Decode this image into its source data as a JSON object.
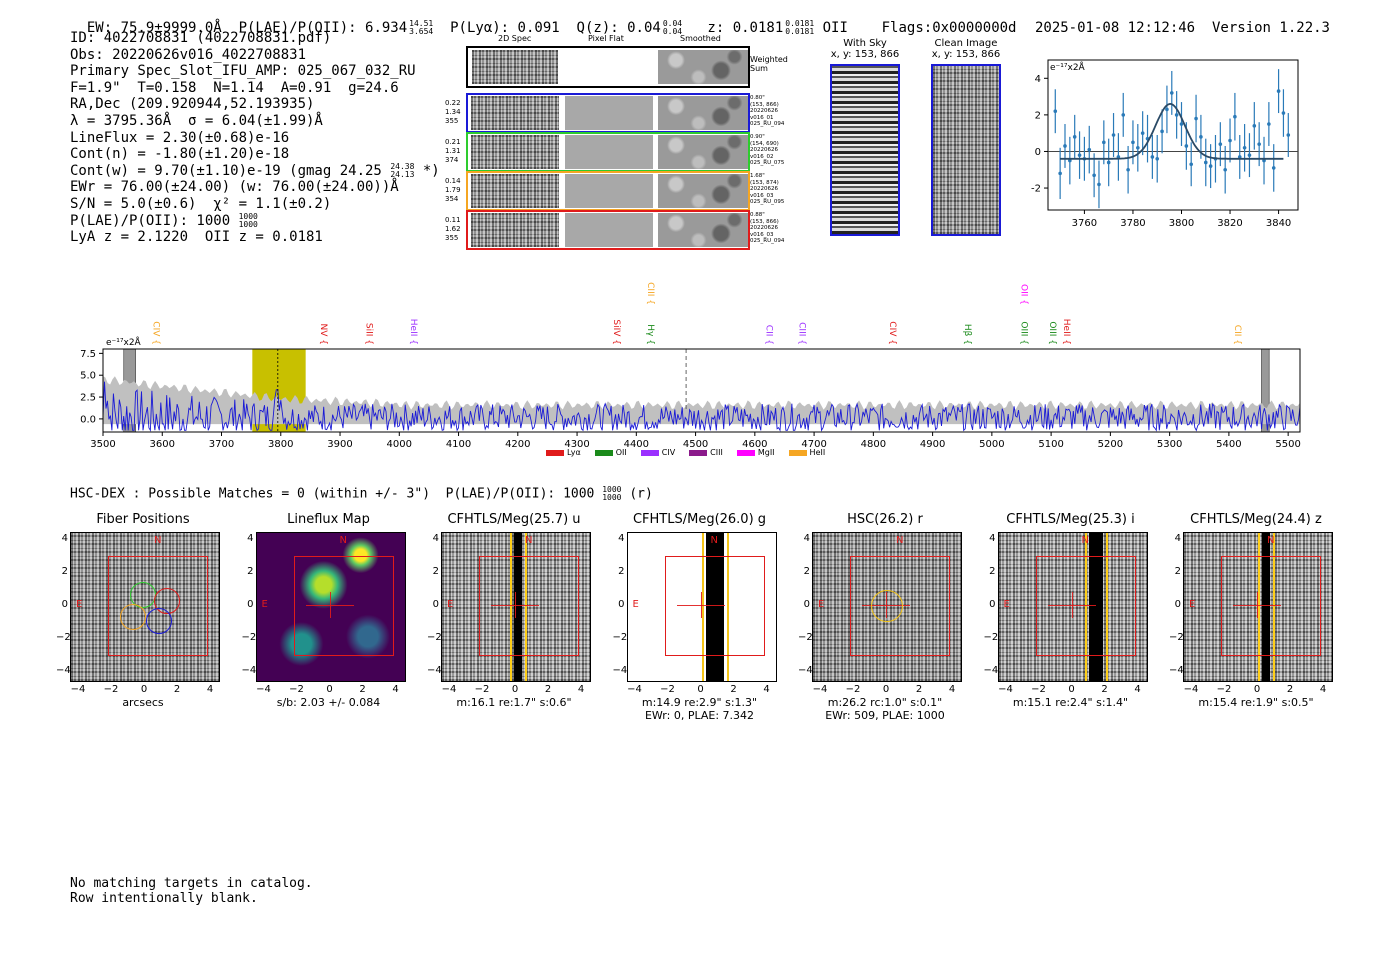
{
  "header": {
    "ew_text": "EW: 75.9±9999.0Å",
    "plae_text": "P(LAE)/P(OII): 6.934",
    "plae_sup": "14.51",
    "plae_sub": "3.654",
    "plya_text": "P(Lyα): 0.091",
    "qz_text": "Q(z): 0.04",
    "qz_sup": "0.04",
    "qz_sub": "0.04",
    "z_text": "z: 0.0181",
    "z_sup": "0.0181",
    "z_sub": "0.0181",
    "z_line": "OII",
    "flags": "Flags:0x0000000d",
    "datetime": "2025-01-08 12:12:46",
    "version": "Version 1.22.3"
  },
  "info": {
    "id": "ID: 4022708831 (4022708831.pdf)",
    "obs": "Obs: 20220626v016_4022708831",
    "primary": "Primary Spec_Slot_IFU_AMP: 025_067_032_RU",
    "params": "F=1.9\"  T=0.158  N=1.14  A=0.91  g=24.6",
    "radec": "RA,Dec (209.920944,52.193935)",
    "lambda": "λ = 3795.36Å  σ = 6.04(±1.99)Å",
    "lineflux": "LineFlux = 2.30(±0.68)e-16",
    "cont_n": "Cont(n) = -1.80(±1.20)e-18",
    "cont_w": "Cont(w) = 9.70(±1.10)e-19 (gmag 24.25",
    "cont_w_sup": "24.38",
    "cont_w_sub": "24.13",
    "cont_w_end": "*)",
    "ewr": "EWr = 76.00(±24.00) (w: 76.00(±24.00))Å",
    "sn": "S/N = 5.0(±0.6)  χ² = 1.1(±0.2)",
    "plae": "P(LAE)/P(OII): 1000",
    "plae_sup": "1000",
    "plae_sub": "1000",
    "lya": "LyA z = 2.1220  OII z = 0.0181"
  },
  "cutouts": {
    "col_headers": [
      "2D Spec",
      "Pixel Flat",
      "Smoothed"
    ],
    "weighted_label": [
      "Weighted",
      "Sum"
    ],
    "rows": [
      {
        "left": [
          "0.22",
          "1.34",
          "355"
        ],
        "right": [
          "0.80\"",
          "(153, 866)",
          "20220626",
          "v016_01",
          "025_RU_094"
        ],
        "color": "#1a1ad6"
      },
      {
        "left": [
          "0.21",
          "1.31",
          "374"
        ],
        "right": [
          "0.90\"",
          "(154, 690)",
          "20220626",
          "v016_02",
          "025_RU_075"
        ],
        "color": "#2ecc2e"
      },
      {
        "left": [
          "0.14",
          "1.79",
          "354"
        ],
        "right": [
          "1.68\"",
          "(153, 874)",
          "20220626",
          "v016_03",
          "025_RU_095"
        ],
        "color": "#f5a623"
      },
      {
        "left": [
          "0.11",
          "1.62",
          "355"
        ],
        "right": [
          "0.88\"",
          "(153, 866)",
          "20220626",
          "v016_03",
          "025_RU_094"
        ],
        "color": "#e01b1b"
      }
    ],
    "with_sky_title": "With Sky",
    "with_sky_xy": "x, y: 153, 866",
    "clean_title": "Clean Image",
    "clean_xy": "x, y: 153, 866"
  },
  "zoom_chart": {
    "unit_label": "e⁻¹⁷x2Å",
    "xlim": [
      3745,
      3848
    ],
    "ylim": [
      -3.2,
      5.0
    ],
    "xticks": [
      "3760",
      "3780",
      "3800",
      "3820",
      "3840"
    ],
    "yticks": [
      "4",
      "2",
      "0",
      "-2"
    ]
  },
  "spectrum_chart": {
    "unit_label": "e⁻¹⁷x2Å",
    "xlim": [
      3500,
      5520
    ],
    "ylim": [
      -1.5,
      8.0
    ],
    "xticks": [
      "3500",
      "3600",
      "3700",
      "3800",
      "3900",
      "4000",
      "4100",
      "4200",
      "4300",
      "4400",
      "4500",
      "4600",
      "4700",
      "4800",
      "4900",
      "5000",
      "5100",
      "5200",
      "5300",
      "5400",
      "5500"
    ],
    "yticks": [
      "7.5",
      "5.0",
      "2.5",
      "0.0"
    ],
    "line_labels": [
      {
        "name": "CIV",
        "x": 3585,
        "color": "#f5a623",
        "row": 1
      },
      {
        "name": "NV",
        "x": 3868,
        "color": "#e01b1b",
        "row": 1
      },
      {
        "name": "SiII",
        "x": 3945,
        "color": "#e01b1b",
        "row": 1
      },
      {
        "name": "HeII",
        "x": 4020,
        "color": "#9b30ff",
        "row": 1
      },
      {
        "name": "SiIV",
        "x": 4362,
        "color": "#e01b1b",
        "row": 1
      },
      {
        "name": "Hγ",
        "x": 4420,
        "color": "#1a8a1a",
        "row": 1
      },
      {
        "name": "CIII",
        "x": 4420,
        "color": "#f5a623",
        "row": 0
      },
      {
        "name": "CII",
        "x": 4620,
        "color": "#9b30ff",
        "row": 1
      },
      {
        "name": "CIII",
        "x": 4675,
        "color": "#9b30ff",
        "row": 1
      },
      {
        "name": "CIV",
        "x": 4828,
        "color": "#e01b1b",
        "row": 1
      },
      {
        "name": "Hβ",
        "x": 4955,
        "color": "#1a8a1a",
        "row": 1
      },
      {
        "name": "OIII",
        "x": 5050,
        "color": "#1a8a1a",
        "row": 1
      },
      {
        "name": "OII",
        "x": 5050,
        "color": "#ff00ff",
        "row": 0
      },
      {
        "name": "OIII",
        "x": 5098,
        "color": "#1a8a1a",
        "row": 1
      },
      {
        "name": "HeII",
        "x": 5122,
        "color": "#e01b1b",
        "row": 1
      },
      {
        "name": "CII",
        "x": 5410,
        "color": "#f5a623",
        "row": 1
      }
    ],
    "legend": [
      {
        "name": "Lyα",
        "color": "#e01b1b"
      },
      {
        "name": "OII",
        "color": "#1a8a1a"
      },
      {
        "name": "CIV",
        "color": "#9b30ff"
      },
      {
        "name": "CIII",
        "color": "#8b1a8b"
      },
      {
        "name": "MgII",
        "color": "#ff00ff"
      },
      {
        "name": "HeII",
        "color": "#f5a623"
      }
    ]
  },
  "chart_data": [
    {
      "type": "scatter",
      "title": "",
      "xlabel": "",
      "ylabel": "e⁻¹⁷x2Å",
      "xlim": [
        3745,
        3848
      ],
      "ylim": [
        -3.2,
        5.0
      ],
      "series": [
        {
          "name": "data",
          "x": [
            3748,
            3750,
            3752,
            3754,
            3756,
            3758,
            3760,
            3762,
            3764,
            3766,
            3768,
            3770,
            3772,
            3774,
            3776,
            3778,
            3780,
            3782,
            3784,
            3786,
            3788,
            3790,
            3792,
            3794,
            3796,
            3798,
            3800,
            3802,
            3804,
            3806,
            3808,
            3810,
            3812,
            3814,
            3816,
            3818,
            3820,
            3822,
            3824,
            3826,
            3828,
            3830,
            3832,
            3834,
            3836,
            3838,
            3840,
            3842,
            3844
          ],
          "y": [
            2.2,
            -1.2,
            0.3,
            -0.5,
            0.8,
            -0.2,
            -0.4,
            0.1,
            -1.3,
            -1.8,
            0.5,
            -0.6,
            0.9,
            -0.3,
            2.0,
            -1.0,
            0.5,
            0.2,
            1.0,
            0.7,
            -0.3,
            -0.4,
            1.1,
            2.3,
            3.2,
            2.0,
            1.5,
            0.3,
            -0.7,
            1.8,
            0.8,
            -0.6,
            -0.8,
            -0.4,
            0.4,
            -1.0,
            0.6,
            1.9,
            -0.3,
            0.2,
            -0.2,
            1.4,
            0.4,
            -0.5,
            1.5,
            -0.9,
            3.3,
            2.1,
            0.9
          ],
          "err": [
            1.2,
            1.4,
            1.2,
            1.3,
            1.2,
            1.3,
            1.2,
            1.3,
            1.2,
            1.3,
            1.2,
            1.3,
            1.2,
            1.3,
            1.2,
            1.3,
            1.2,
            1.3,
            1.2,
            1.3,
            1.2,
            1.3,
            1.2,
            1.3,
            1.2,
            1.3,
            1.2,
            1.3,
            1.2,
            1.3,
            1.2,
            1.3,
            1.2,
            1.3,
            1.2,
            1.3,
            1.2,
            1.3,
            1.2,
            1.3,
            1.2,
            1.3,
            1.2,
            1.3,
            1.2,
            1.3,
            1.2,
            1.3,
            1.2
          ]
        },
        {
          "name": "gaussian fit",
          "center": 3795.36,
          "sigma": 6.04,
          "amplitude": 3.0,
          "baseline": -0.4
        }
      ]
    },
    {
      "type": "line",
      "title": "",
      "xlabel": "",
      "ylabel": "e⁻¹⁷x2Å",
      "xlim": [
        3500,
        5520
      ],
      "ylim": [
        -1.5,
        8.0
      ],
      "highlight_range": [
        3752,
        3842
      ],
      "marker_lines": [
        3795,
        4484
      ],
      "hatched_ranges": [
        [
          3535,
          3555
        ],
        [
          5455,
          5468
        ]
      ],
      "series": [
        {
          "name": "flux",
          "color": "#1a1ad6"
        },
        {
          "name": "noise",
          "color": "#c0c0c0"
        }
      ]
    }
  ],
  "bottom": {
    "hsc_line": "HSC-DEX : Possible Matches = 0 (within +/- 3\")  P(LAE)/P(OII): 1000",
    "hsc_sup": "1000",
    "hsc_sub": "1000",
    "hsc_end": "(r)",
    "panels": [
      {
        "title": "Fiber Positions",
        "caption1": "arcsecs",
        "caption2": "",
        "kind": "fiber"
      },
      {
        "title": "Lineflux Map",
        "caption1": "s/b: 2.03 +/- 0.084",
        "caption2": "",
        "kind": "lineflux"
      },
      {
        "title": "CFHTLS/Meg(25.7) u",
        "caption1": "m:16.1  re:1.7\"  s:0.6\"",
        "caption2": "",
        "kind": "band"
      },
      {
        "title": "CFHTLS/Meg(26.0) g",
        "caption1": "m:14.9  re:2.9\"  s:1.3\"",
        "caption2": "EWr: 0, PLAE: 7.342",
        "kind": "g"
      },
      {
        "title": "HSC(26.2) r",
        "caption1": "m:26.2  rc:1.0\"  s:0.1\"",
        "caption2": "EWr: 509, PLAE: 1000",
        "kind": "r"
      },
      {
        "title": "CFHTLS/Meg(25.3) i",
        "caption1": "m:15.1  re:2.4\"  s:1.4\"",
        "caption2": "",
        "kind": "band"
      },
      {
        "title": "CFHTLS/Meg(24.4) z",
        "caption1": "m:15.4  re:1.9\"  s:0.5\"",
        "caption2": "",
        "kind": "band"
      }
    ],
    "axis_ticks": [
      "−4",
      "−2",
      "0",
      "2",
      "4"
    ],
    "compass_n": "N",
    "compass_e": "E",
    "no_match_1": "No matching targets in catalog.",
    "no_match_2": "Row intentionally blank."
  }
}
